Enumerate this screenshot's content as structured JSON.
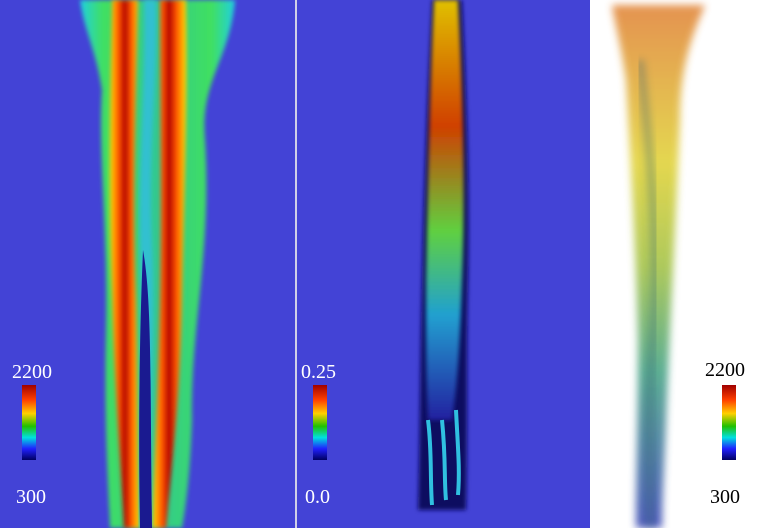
{
  "panels": [
    {
      "colorbar": {
        "max": "2200",
        "min": "300"
      }
    },
    {
      "colorbar": {
        "max": "0.25",
        "min": "0.0"
      }
    },
    {
      "colorbar": {
        "max": "2200",
        "min": "300"
      }
    }
  ]
}
